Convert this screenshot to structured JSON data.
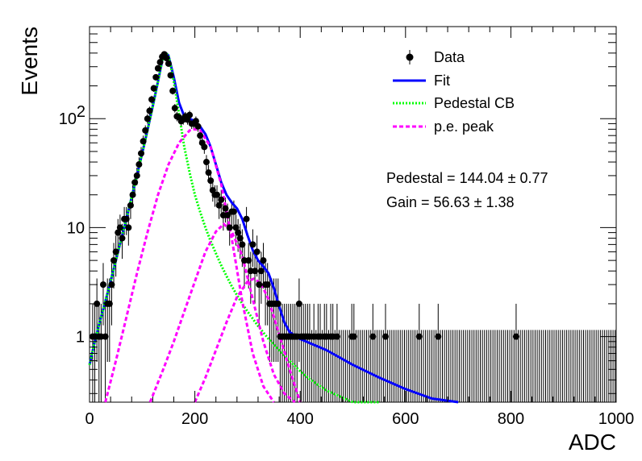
{
  "chart_data": {
    "type": "scatter",
    "xlabel": "ADC",
    "ylabel": "Events",
    "xlim": [
      0,
      1000
    ],
    "ylim": [
      0.25,
      700
    ],
    "yscale": "log",
    "grid": false,
    "legend_placement": "top-right",
    "xticks": [
      {
        "value": 0,
        "label": "0"
      },
      {
        "value": 200,
        "label": "200"
      },
      {
        "value": 400,
        "label": "400"
      },
      {
        "value": 600,
        "label": "600"
      },
      {
        "value": 800,
        "label": "800"
      },
      {
        "value": 1000,
        "label": "1000"
      }
    ],
    "yticks": [
      {
        "value": 1,
        "label": "1"
      },
      {
        "value": 10,
        "label": "10"
      },
      {
        "value": 100,
        "label": "10",
        "sup": "2"
      }
    ],
    "legend": [
      {
        "label": "Data",
        "style": "marker"
      },
      {
        "label": "Fit",
        "style": "solid",
        "color": "#0000ff"
      },
      {
        "label": "Pedestal CB",
        "style": "dotted",
        "color": "#00ff00"
      },
      {
        "label": "p.e. peak",
        "style": "dashed",
        "color": "#ff00ff"
      }
    ],
    "annotations": [
      "Pedestal = 144.04 ± 0.77",
      "Gain = 56.63 ± 1.38"
    ],
    "series": [
      {
        "name": "Data",
        "kind": "points",
        "color": "#000000",
        "x": [
          6,
          10,
          14,
          18,
          22,
          26,
          30,
          34,
          38,
          42,
          46,
          50,
          54,
          58,
          62,
          66,
          70,
          74,
          78,
          82,
          86,
          90,
          94,
          98,
          102,
          106,
          110,
          114,
          118,
          122,
          126,
          130,
          134,
          138,
          142,
          146,
          150,
          154,
          158,
          162,
          166,
          170,
          174,
          178,
          182,
          186,
          190,
          194,
          198,
          202,
          206,
          210,
          214,
          218,
          222,
          226,
          230,
          234,
          238,
          242,
          246,
          250,
          254,
          258,
          262,
          266,
          270,
          274,
          278,
          282,
          286,
          290,
          294,
          298,
          302,
          306,
          310,
          314,
          318,
          322,
          326,
          330,
          334,
          338,
          342,
          346,
          350,
          354,
          358,
          362,
          366,
          370,
          374,
          378,
          382,
          386,
          390,
          394,
          398,
          402,
          406,
          410,
          414,
          418,
          422,
          426,
          430,
          434,
          438,
          442,
          446,
          450,
          454,
          458,
          462,
          466,
          470,
          474,
          478,
          482,
          486,
          490,
          494,
          498,
          502,
          506,
          510,
          514,
          518,
          522,
          526,
          530,
          534,
          538,
          542,
          546,
          550,
          554,
          558,
          562,
          566,
          570,
          574,
          578,
          582,
          586,
          590,
          594,
          598,
          602,
          606,
          610,
          614,
          618,
          622,
          626,
          630,
          634,
          638,
          642,
          646,
          650,
          654,
          658,
          662,
          666,
          670,
          674,
          678,
          682,
          686,
          690,
          694,
          698,
          702,
          706,
          710,
          714,
          718,
          722,
          726,
          730,
          734,
          738,
          742,
          746,
          750,
          754,
          758,
          762,
          766,
          770,
          774,
          778,
          782,
          786,
          790,
          794,
          798,
          802,
          806,
          810,
          814,
          818,
          822,
          826,
          830,
          834,
          838,
          842,
          846,
          850,
          854,
          858,
          862,
          866,
          870,
          874,
          878,
          882,
          886,
          890,
          894,
          898,
          902,
          906,
          910,
          914,
          918,
          922,
          926,
          930,
          934,
          938,
          942,
          946,
          950,
          954,
          958,
          962,
          966,
          970,
          974,
          978,
          982,
          986,
          990,
          994,
          998
        ],
        "y": [
          1,
          1,
          2,
          1,
          1,
          3,
          1,
          2,
          2,
          3,
          5,
          6,
          9,
          10,
          8,
          12,
          12,
          10,
          16,
          20,
          26,
          30,
          38,
          48,
          62,
          78,
          100,
          118,
          150,
          190,
          240,
          290,
          330,
          370,
          390,
          360,
          320,
          250,
          180,
          125,
          105,
          103,
          95,
          98,
          105,
          98,
          108,
          90,
          90,
          95,
          85,
          70,
          60,
          55,
          40,
          32,
          27,
          22,
          20,
          20,
          16,
          18,
          13,
          15,
          13,
          10,
          14,
          14,
          10,
          9,
          8,
          7,
          5,
          12,
          5,
          4,
          7,
          4,
          6,
          3,
          4,
          5,
          3,
          3,
          2,
          2,
          2,
          2,
          2,
          1,
          1,
          1,
          1,
          1,
          1,
          1,
          1,
          1,
          2,
          1,
          1,
          1,
          1,
          1,
          0,
          1,
          0,
          1,
          1,
          0,
          1,
          1,
          0,
          1,
          1,
          0,
          1,
          0,
          0,
          0,
          0,
          0,
          0,
          1,
          1,
          0,
          0,
          0,
          0,
          0,
          0,
          0,
          0,
          1,
          0,
          0,
          0,
          0,
          0,
          1,
          0,
          0,
          0,
          0,
          0,
          0,
          0,
          0,
          0,
          0,
          0,
          0,
          0,
          0,
          0,
          1,
          0,
          0,
          0,
          0,
          0,
          0,
          0,
          0,
          1,
          0,
          0,
          0,
          0,
          0,
          0,
          0,
          0,
          0,
          0,
          0,
          0,
          0,
          0,
          0,
          0,
          0,
          0,
          0,
          0,
          0,
          0,
          0,
          0,
          0,
          0,
          0,
          0,
          0,
          0,
          0,
          0,
          0,
          0,
          0,
          0,
          1,
          0,
          0,
          0,
          0,
          0,
          0,
          0,
          0,
          0,
          0,
          0,
          0,
          0,
          0,
          0,
          0,
          0,
          0,
          0,
          0,
          0,
          0,
          0,
          0,
          0,
          0,
          0,
          0,
          0,
          0,
          0,
          0,
          0,
          0,
          0,
          0,
          0,
          0,
          0,
          0,
          0,
          0,
          0,
          0,
          0,
          0,
          0
        ]
      },
      {
        "name": "Fit",
        "kind": "curve",
        "style": "solid",
        "color": "#0000ff",
        "x": [
          0,
          10,
          20,
          30,
          40,
          50,
          60,
          70,
          80,
          90,
          100,
          110,
          120,
          130,
          140,
          145,
          150,
          160,
          170,
          180,
          190,
          200,
          210,
          220,
          230,
          240,
          250,
          260,
          270,
          280,
          290,
          300,
          310,
          320,
          330,
          340,
          350,
          360,
          370,
          380,
          400,
          450,
          500,
          550,
          600,
          650,
          700
        ],
        "y": [
          0.55,
          0.9,
          1.4,
          2.1,
          3.2,
          5.0,
          7.8,
          12,
          19,
          30,
          48,
          78,
          130,
          220,
          380,
          400,
          380,
          240,
          140,
          105,
          100,
          95,
          85,
          72,
          55,
          38,
          26,
          20,
          17,
          15,
          12,
          8.5,
          6.2,
          5.0,
          4.4,
          3.8,
          2.8,
          1.9,
          1.35,
          1.1,
          0.95,
          0.75,
          0.55,
          0.42,
          0.33,
          0.27,
          0.24
        ]
      },
      {
        "name": "Pedestal CB",
        "kind": "curve",
        "style": "dotted",
        "color": "#00ff00",
        "x": [
          0,
          10,
          20,
          30,
          40,
          50,
          60,
          70,
          80,
          90,
          100,
          110,
          120,
          130,
          140,
          145,
          150,
          160,
          170,
          180,
          190,
          200,
          210,
          220,
          230,
          240,
          250,
          260,
          270,
          280,
          290,
          300,
          320,
          340,
          360,
          380,
          400,
          420,
          450,
          500,
          550
        ],
        "y": [
          0.55,
          0.9,
          1.4,
          2.1,
          3.2,
          5.0,
          7.8,
          12,
          19,
          30,
          48,
          78,
          130,
          220,
          380,
          400,
          380,
          220,
          110,
          55,
          32,
          20,
          14,
          10,
          7.5,
          5.8,
          4.5,
          3.6,
          2.9,
          2.4,
          2.0,
          1.7,
          1.25,
          0.95,
          0.75,
          0.6,
          0.48,
          0.4,
          0.32,
          0.24,
          0.2
        ]
      },
      {
        "name": "p.e. peak 1",
        "kind": "curve",
        "style": "dashed",
        "color": "#ff00ff",
        "x": [
          30,
          50,
          70,
          90,
          110,
          130,
          150,
          170,
          190,
          200,
          210,
          230,
          250,
          270,
          290,
          310,
          330,
          350
        ],
        "y": [
          0.25,
          0.6,
          1.5,
          3.8,
          9,
          20,
          38,
          60,
          78,
          80,
          78,
          55,
          25,
          8,
          2.1,
          0.7,
          0.35,
          0.22
        ]
      },
      {
        "name": "p.e. peak 2",
        "kind": "curve",
        "style": "dashed",
        "color": "#ff00ff",
        "x": [
          115,
          140,
          160,
          180,
          200,
          220,
          240,
          255,
          270,
          290,
          310,
          330,
          350,
          370,
          390
        ],
        "y": [
          0.25,
          0.5,
          0.9,
          1.7,
          3.2,
          6.0,
          9.2,
          10.8,
          9.2,
          5.5,
          2.2,
          0.9,
          0.45,
          0.3,
          0.22
        ]
      },
      {
        "name": "p.e. peak 3",
        "kind": "curve",
        "style": "dashed",
        "color": "#ff00ff",
        "x": [
          200,
          220,
          240,
          260,
          280,
          300,
          312,
          325,
          340,
          360,
          380,
          400
        ],
        "y": [
          0.25,
          0.42,
          0.75,
          1.35,
          2.3,
          3.2,
          3.4,
          3.1,
          2.2,
          1.05,
          0.5,
          0.25
        ]
      }
    ]
  }
}
